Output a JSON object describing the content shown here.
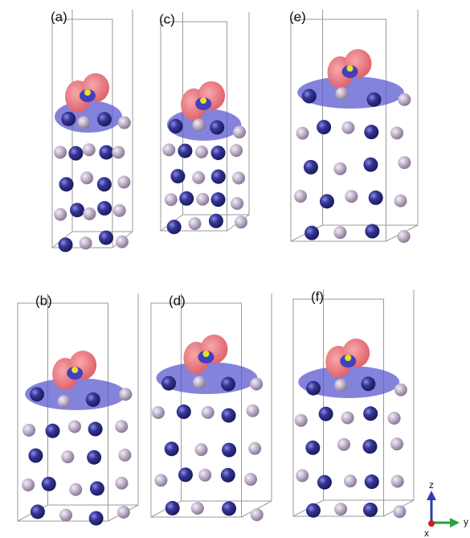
{
  "panels": [
    {
      "label": "(a)"
    },
    {
      "label": "(c)"
    },
    {
      "label": "(e)"
    },
    {
      "label": "(b)"
    },
    {
      "label": "(d)"
    },
    {
      "label": "(f)"
    }
  ],
  "axes": {
    "z": "z",
    "y": "y",
    "x": "x"
  }
}
